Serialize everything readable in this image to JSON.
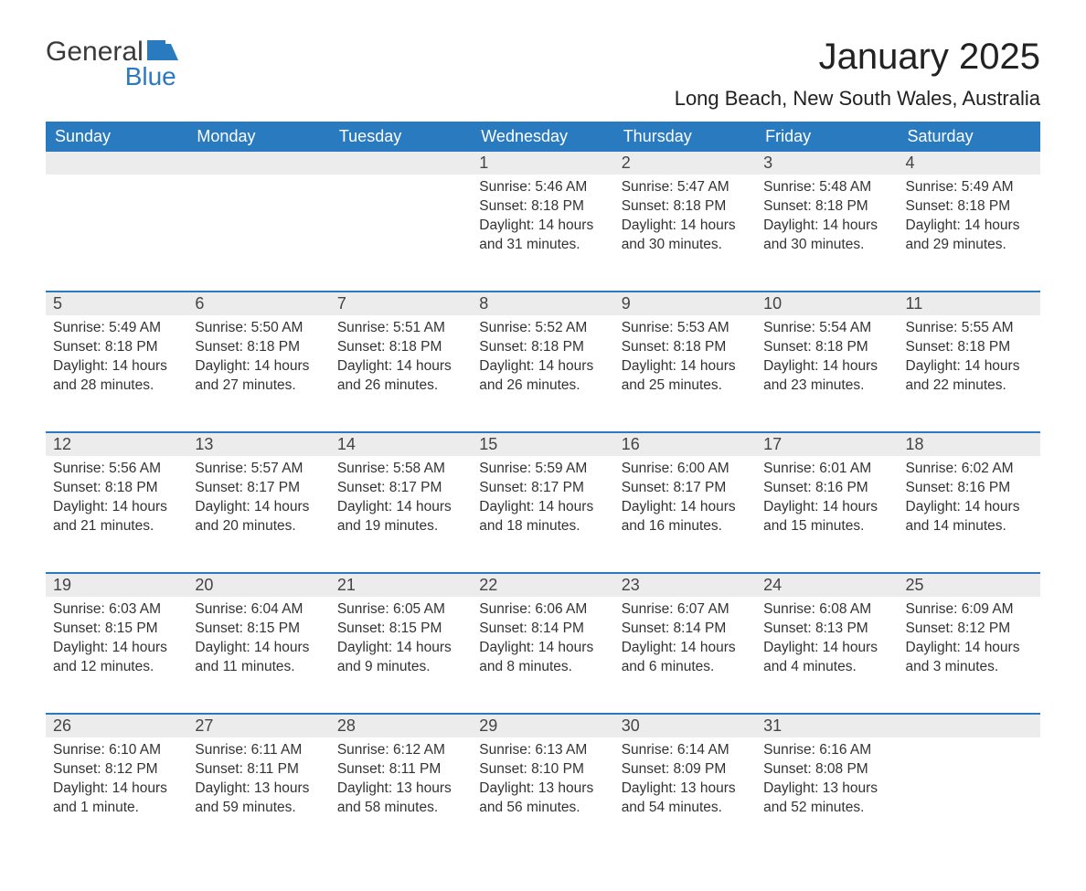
{
  "logo": {
    "word1": "General",
    "word2": "Blue"
  },
  "title": "January 2025",
  "location": "Long Beach, New South Wales, Australia",
  "colors": {
    "header_bg": "#2a7ac0",
    "header_text": "#ffffff",
    "daynum_bg": "#ececec",
    "row_divider": "#2a7ac0",
    "body_text": "#333333",
    "page_bg": "#ffffff",
    "logo_gray": "#3a3a3a",
    "logo_blue": "#2a7ac0"
  },
  "typography": {
    "title_fontsize": 40,
    "location_fontsize": 22,
    "weekday_fontsize": 18,
    "daynum_fontsize": 18,
    "body_fontsize": 15.5
  },
  "weekdays": [
    "Sunday",
    "Monday",
    "Tuesday",
    "Wednesday",
    "Thursday",
    "Friday",
    "Saturday"
  ],
  "weeks": [
    [
      null,
      null,
      null,
      {
        "n": "1",
        "sunrise": "Sunrise: 5:46 AM",
        "sunset": "Sunset: 8:18 PM",
        "daylight": "Daylight: 14 hours and 31 minutes."
      },
      {
        "n": "2",
        "sunrise": "Sunrise: 5:47 AM",
        "sunset": "Sunset: 8:18 PM",
        "daylight": "Daylight: 14 hours and 30 minutes."
      },
      {
        "n": "3",
        "sunrise": "Sunrise: 5:48 AM",
        "sunset": "Sunset: 8:18 PM",
        "daylight": "Daylight: 14 hours and 30 minutes."
      },
      {
        "n": "4",
        "sunrise": "Sunrise: 5:49 AM",
        "sunset": "Sunset: 8:18 PM",
        "daylight": "Daylight: 14 hours and 29 minutes."
      }
    ],
    [
      {
        "n": "5",
        "sunrise": "Sunrise: 5:49 AM",
        "sunset": "Sunset: 8:18 PM",
        "daylight": "Daylight: 14 hours and 28 minutes."
      },
      {
        "n": "6",
        "sunrise": "Sunrise: 5:50 AM",
        "sunset": "Sunset: 8:18 PM",
        "daylight": "Daylight: 14 hours and 27 minutes."
      },
      {
        "n": "7",
        "sunrise": "Sunrise: 5:51 AM",
        "sunset": "Sunset: 8:18 PM",
        "daylight": "Daylight: 14 hours and 26 minutes."
      },
      {
        "n": "8",
        "sunrise": "Sunrise: 5:52 AM",
        "sunset": "Sunset: 8:18 PM",
        "daylight": "Daylight: 14 hours and 26 minutes."
      },
      {
        "n": "9",
        "sunrise": "Sunrise: 5:53 AM",
        "sunset": "Sunset: 8:18 PM",
        "daylight": "Daylight: 14 hours and 25 minutes."
      },
      {
        "n": "10",
        "sunrise": "Sunrise: 5:54 AM",
        "sunset": "Sunset: 8:18 PM",
        "daylight": "Daylight: 14 hours and 23 minutes."
      },
      {
        "n": "11",
        "sunrise": "Sunrise: 5:55 AM",
        "sunset": "Sunset: 8:18 PM",
        "daylight": "Daylight: 14 hours and 22 minutes."
      }
    ],
    [
      {
        "n": "12",
        "sunrise": "Sunrise: 5:56 AM",
        "sunset": "Sunset: 8:18 PM",
        "daylight": "Daylight: 14 hours and 21 minutes."
      },
      {
        "n": "13",
        "sunrise": "Sunrise: 5:57 AM",
        "sunset": "Sunset: 8:17 PM",
        "daylight": "Daylight: 14 hours and 20 minutes."
      },
      {
        "n": "14",
        "sunrise": "Sunrise: 5:58 AM",
        "sunset": "Sunset: 8:17 PM",
        "daylight": "Daylight: 14 hours and 19 minutes."
      },
      {
        "n": "15",
        "sunrise": "Sunrise: 5:59 AM",
        "sunset": "Sunset: 8:17 PM",
        "daylight": "Daylight: 14 hours and 18 minutes."
      },
      {
        "n": "16",
        "sunrise": "Sunrise: 6:00 AM",
        "sunset": "Sunset: 8:17 PM",
        "daylight": "Daylight: 14 hours and 16 minutes."
      },
      {
        "n": "17",
        "sunrise": "Sunrise: 6:01 AM",
        "sunset": "Sunset: 8:16 PM",
        "daylight": "Daylight: 14 hours and 15 minutes."
      },
      {
        "n": "18",
        "sunrise": "Sunrise: 6:02 AM",
        "sunset": "Sunset: 8:16 PM",
        "daylight": "Daylight: 14 hours and 14 minutes."
      }
    ],
    [
      {
        "n": "19",
        "sunrise": "Sunrise: 6:03 AM",
        "sunset": "Sunset: 8:15 PM",
        "daylight": "Daylight: 14 hours and 12 minutes."
      },
      {
        "n": "20",
        "sunrise": "Sunrise: 6:04 AM",
        "sunset": "Sunset: 8:15 PM",
        "daylight": "Daylight: 14 hours and 11 minutes."
      },
      {
        "n": "21",
        "sunrise": "Sunrise: 6:05 AM",
        "sunset": "Sunset: 8:15 PM",
        "daylight": "Daylight: 14 hours and 9 minutes."
      },
      {
        "n": "22",
        "sunrise": "Sunrise: 6:06 AM",
        "sunset": "Sunset: 8:14 PM",
        "daylight": "Daylight: 14 hours and 8 minutes."
      },
      {
        "n": "23",
        "sunrise": "Sunrise: 6:07 AM",
        "sunset": "Sunset: 8:14 PM",
        "daylight": "Daylight: 14 hours and 6 minutes."
      },
      {
        "n": "24",
        "sunrise": "Sunrise: 6:08 AM",
        "sunset": "Sunset: 8:13 PM",
        "daylight": "Daylight: 14 hours and 4 minutes."
      },
      {
        "n": "25",
        "sunrise": "Sunrise: 6:09 AM",
        "sunset": "Sunset: 8:12 PM",
        "daylight": "Daylight: 14 hours and 3 minutes."
      }
    ],
    [
      {
        "n": "26",
        "sunrise": "Sunrise: 6:10 AM",
        "sunset": "Sunset: 8:12 PM",
        "daylight": "Daylight: 14 hours and 1 minute."
      },
      {
        "n": "27",
        "sunrise": "Sunrise: 6:11 AM",
        "sunset": "Sunset: 8:11 PM",
        "daylight": "Daylight: 13 hours and 59 minutes."
      },
      {
        "n": "28",
        "sunrise": "Sunrise: 6:12 AM",
        "sunset": "Sunset: 8:11 PM",
        "daylight": "Daylight: 13 hours and 58 minutes."
      },
      {
        "n": "29",
        "sunrise": "Sunrise: 6:13 AM",
        "sunset": "Sunset: 8:10 PM",
        "daylight": "Daylight: 13 hours and 56 minutes."
      },
      {
        "n": "30",
        "sunrise": "Sunrise: 6:14 AM",
        "sunset": "Sunset: 8:09 PM",
        "daylight": "Daylight: 13 hours and 54 minutes."
      },
      {
        "n": "31",
        "sunrise": "Sunrise: 6:16 AM",
        "sunset": "Sunset: 8:08 PM",
        "daylight": "Daylight: 13 hours and 52 minutes."
      },
      null
    ]
  ]
}
